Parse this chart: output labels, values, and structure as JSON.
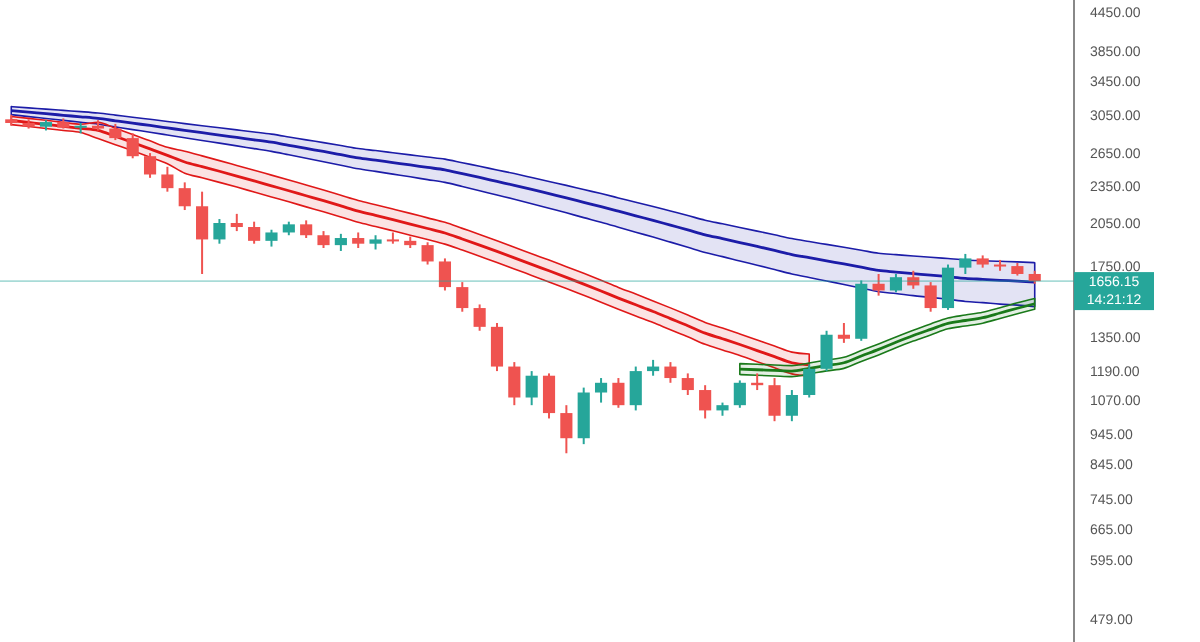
{
  "chart_data": {
    "type": "candlestick",
    "log": true,
    "grid": false,
    "categories": [
      null,
      null,
      null,
      null,
      null,
      null,
      null,
      null,
      null,
      null,
      null,
      null,
      null,
      null,
      null,
      null,
      null,
      null,
      null,
      null,
      null,
      null,
      null,
      null,
      null,
      null,
      null,
      null,
      null,
      null,
      null,
      null,
      null,
      null,
      null,
      null,
      null,
      null,
      null,
      null,
      null,
      null,
      null,
      null,
      null,
      null,
      null,
      null,
      null,
      null,
      null,
      null,
      null,
      null,
      null,
      null,
      null,
      null,
      null,
      null
    ],
    "ohlc": [
      [
        3000,
        3050,
        2930,
        2960
      ],
      [
        2960,
        3000,
        2900,
        2920
      ],
      [
        2920,
        2990,
        2880,
        2970
      ],
      [
        2970,
        3010,
        2900,
        2910
      ],
      [
        2910,
        2960,
        2850,
        2930
      ],
      [
        2930,
        2990,
        2880,
        2900
      ],
      [
        2900,
        2950,
        2780,
        2800
      ],
      [
        2800,
        2850,
        2600,
        2620
      ],
      [
        2620,
        2650,
        2420,
        2450
      ],
      [
        2450,
        2520,
        2300,
        2330
      ],
      [
        2330,
        2380,
        2150,
        2180
      ],
      [
        2180,
        2300,
        1700,
        1930
      ],
      [
        1930,
        2080,
        1900,
        2050
      ],
      [
        2050,
        2120,
        1990,
        2020
      ],
      [
        2020,
        2060,
        1900,
        1920
      ],
      [
        1920,
        2000,
        1880,
        1980
      ],
      [
        1980,
        2060,
        1960,
        2040
      ],
      [
        2040,
        2070,
        1940,
        1960
      ],
      [
        1960,
        1990,
        1870,
        1890
      ],
      [
        1890,
        1970,
        1850,
        1940
      ],
      [
        1940,
        1980,
        1870,
        1900
      ],
      [
        1900,
        1960,
        1860,
        1930
      ],
      [
        1930,
        1980,
        1900,
        1920
      ],
      [
        1920,
        1950,
        1870,
        1890
      ],
      [
        1890,
        1910,
        1760,
        1780
      ],
      [
        1780,
        1800,
        1600,
        1620
      ],
      [
        1620,
        1650,
        1480,
        1500
      ],
      [
        1500,
        1520,
        1380,
        1400
      ],
      [
        1400,
        1420,
        1190,
        1210
      ],
      [
        1210,
        1230,
        1050,
        1080
      ],
      [
        1080,
        1190,
        1050,
        1170
      ],
      [
        1170,
        1180,
        1000,
        1020
      ],
      [
        1020,
        1050,
        880,
        930
      ],
      [
        930,
        1120,
        910,
        1100
      ],
      [
        1100,
        1160,
        1060,
        1140
      ],
      [
        1140,
        1160,
        1040,
        1050
      ],
      [
        1050,
        1210,
        1030,
        1190
      ],
      [
        1190,
        1240,
        1170,
        1210
      ],
      [
        1210,
        1230,
        1140,
        1160
      ],
      [
        1160,
        1180,
        1090,
        1110
      ],
      [
        1110,
        1130,
        1000,
        1030
      ],
      [
        1030,
        1060,
        1010,
        1050
      ],
      [
        1050,
        1150,
        1040,
        1140
      ],
      [
        1140,
        1180,
        1110,
        1130
      ],
      [
        1130,
        1160,
        990,
        1010
      ],
      [
        1010,
        1110,
        990,
        1090
      ],
      [
        1090,
        1220,
        1080,
        1200
      ],
      [
        1200,
        1380,
        1190,
        1360
      ],
      [
        1360,
        1420,
        1320,
        1340
      ],
      [
        1340,
        1660,
        1330,
        1640
      ],
      [
        1640,
        1700,
        1570,
        1600
      ],
      [
        1600,
        1700,
        1590,
        1680
      ],
      [
        1680,
        1720,
        1610,
        1630
      ],
      [
        1630,
        1650,
        1480,
        1500
      ],
      [
        1500,
        1760,
        1490,
        1740
      ],
      [
        1740,
        1830,
        1700,
        1800
      ],
      [
        1800,
        1820,
        1740,
        1760
      ],
      [
        1760,
        1790,
        1720,
        1750
      ],
      [
        1750,
        1770,
        1690,
        1700
      ],
      [
        1700,
        1720,
        1640,
        1656
      ]
    ],
    "series": [
      {
        "type": "line",
        "color": "#1c1ca8",
        "values": [
          3098,
          3080,
          3063,
          3045,
          3028,
          3010,
          2984,
          2958,
          2933,
          2907,
          2881,
          2856,
          2832,
          2807,
          2783,
          2758,
          2727,
          2696,
          2666,
          2635,
          2604,
          2582,
          2559,
          2537,
          2514,
          2492,
          2457,
          2423,
          2388,
          2354,
          2319,
          2283,
          2248,
          2212,
          2177,
          2141,
          2105,
          2070,
          2034,
          1999,
          1963,
          1936,
          1908,
          1881,
          1854,
          1826,
          1805,
          1784,
          1764,
          1743,
          1722,
          1712,
          1702,
          1693,
          1683,
          1673,
          1667,
          1661,
          1656,
          1650
        ],
        "upper": [
          3144,
          3129,
          3115,
          3100,
          3086,
          3070,
          3047,
          3023,
          3000,
          2977,
          2953,
          2930,
          2908,
          2886,
          2864,
          2841,
          2812,
          2782,
          2754,
          2725,
          2695,
          2675,
          2654,
          2633,
          2612,
          2592,
          2558,
          2525,
          2491,
          2458,
          2423,
          2388,
          2354,
          2318,
          2284,
          2248,
          2212,
          2178,
          2142,
          2107,
          2071,
          2044,
          2017,
          1990,
          1963,
          1936,
          1915,
          1895,
          1875,
          1855,
          1834,
          1825,
          1816,
          1808,
          1799,
          1790,
          1785,
          1781,
          1777,
          1772
        ],
        "lower": [
          3052,
          3030,
          3010,
          2988,
          2968,
          2947,
          2918,
          2889,
          2861,
          2832,
          2803,
          2775,
          2749,
          2721,
          2694,
          2667,
          2634,
          2601,
          2568,
          2535,
          2502,
          2478,
          2453,
          2429,
          2404,
          2380,
          2344,
          2308,
          2272,
          2237,
          2201,
          2164,
          2128,
          2091,
          2056,
          2019,
          1982,
          1947,
          1911,
          1875,
          1839,
          1812,
          1783,
          1756,
          1728,
          1700,
          1678,
          1657,
          1636,
          1614,
          1593,
          1582,
          1570,
          1560,
          1549,
          1537,
          1530,
          1522,
          1516,
          1508
        ]
      },
      {
        "type": "line",
        "color": "#e01818",
        "values": [
          2987,
          2966,
          2945,
          2923,
          2902,
          2881,
          2818,
          2755,
          2691,
          2628,
          2565,
          2522,
          2479,
          2436,
          2393,
          2350,
          2308,
          2266,
          2225,
          2183,
          2141,
          2108,
          2075,
          2042,
          2009,
          1976,
          1933,
          1890,
          1847,
          1804,
          1761,
          1720,
          1679,
          1638,
          1597,
          1556,
          1518,
          1481,
          1443,
          1406,
          1368,
          1340,
          1312,
          1283,
          1255,
          1227,
          1218,
          null,
          null,
          null,
          null,
          null,
          null,
          null,
          null,
          null,
          null,
          null,
          null,
          null
        ],
        "upper": [
          3032,
          3011,
          2989,
          2967,
          2946,
          2967,
          2903,
          2838,
          2772,
          2707,
          2668,
          2623,
          2578,
          2533,
          2489,
          2444,
          2400,
          2357,
          2314,
          2270,
          2227,
          2192,
          2158,
          2124,
          2089,
          2055,
          2010,
          1966,
          1921,
          1876,
          1831,
          1789,
          1746,
          1704,
          1661,
          1618,
          1579,
          1540,
          1501,
          1462,
          1423,
          1394,
          1364,
          1334,
          1305,
          1276,
          1267,
          null,
          null,
          null,
          null,
          null,
          null,
          null,
          null,
          null,
          null,
          null,
          null,
          null
        ],
        "lower": [
          2942,
          2922,
          2901,
          2879,
          2858,
          2795,
          2733,
          2672,
          2610,
          2549,
          2462,
          2421,
          2380,
          2339,
          2297,
          2256,
          2216,
          2175,
          2136,
          2096,
          2055,
          2024,
          1992,
          1960,
          1929,
          1897,
          1856,
          1814,
          1773,
          1732,
          1691,
          1651,
          1612,
          1572,
          1533,
          1494,
          1457,
          1422,
          1385,
          1350,
          1313,
          1286,
          1260,
          1232,
          1205,
          1178,
          1169,
          null,
          null,
          null,
          null,
          null,
          null,
          null,
          null,
          null,
          null,
          null,
          null,
          null
        ]
      },
      {
        "type": "line",
        "color": "#1a7a1a",
        "values": [
          null,
          null,
          null,
          null,
          null,
          null,
          null,
          null,
          null,
          null,
          null,
          null,
          null,
          null,
          null,
          null,
          null,
          null,
          null,
          null,
          null,
          null,
          null,
          null,
          null,
          null,
          null,
          null,
          null,
          null,
          null,
          null,
          null,
          null,
          null,
          null,
          null,
          null,
          null,
          null,
          null,
          null,
          1199,
          1196,
          1193,
          1190,
          1202,
          1215,
          1227,
          1258,
          1289,
          1323,
          1356,
          1387,
          1418,
          1433,
          1448,
          1473,
          1499,
          1524
        ],
        "upper": [
          null,
          null,
          null,
          null,
          null,
          null,
          null,
          null,
          null,
          null,
          null,
          null,
          null,
          null,
          null,
          null,
          null,
          null,
          null,
          null,
          null,
          null,
          null,
          null,
          null,
          null,
          null,
          null,
          null,
          null,
          null,
          null,
          null,
          null,
          null,
          null,
          null,
          null,
          null,
          null,
          null,
          null,
          1223,
          1220,
          1217,
          1214,
          1226,
          1239,
          1252,
          1283,
          1315,
          1349,
          1383,
          1415,
          1446,
          1462,
          1477,
          1502,
          1529,
          1554
        ],
        "lower": [
          null,
          null,
          null,
          null,
          null,
          null,
          null,
          null,
          null,
          null,
          null,
          null,
          null,
          null,
          null,
          null,
          null,
          null,
          null,
          null,
          null,
          null,
          null,
          null,
          null,
          null,
          null,
          null,
          null,
          null,
          null,
          null,
          null,
          null,
          null,
          null,
          null,
          null,
          null,
          null,
          null,
          null,
          1175,
          1172,
          1169,
          1166,
          1178,
          1191,
          1202,
          1233,
          1263,
          1297,
          1329,
          1359,
          1390,
          1404,
          1419,
          1444,
          1469,
          1494
        ]
      }
    ],
    "ylim": [
      440,
      4650
    ],
    "yticks": [
      {
        "value": 4450,
        "label": "4450.00"
      },
      {
        "value": 3850,
        "label": "3850.00"
      },
      {
        "value": 3450,
        "label": "3450.00"
      },
      {
        "value": 3050,
        "label": "3050.00"
      },
      {
        "value": 2650,
        "label": "2650.00"
      },
      {
        "value": 2350,
        "label": "2350.00"
      },
      {
        "value": 2050,
        "label": "2050.00"
      },
      {
        "value": 1750,
        "label": "1750.00"
      },
      {
        "value": 1350,
        "label": "1350.00"
      },
      {
        "value": 1190,
        "label": "1190.00"
      },
      {
        "value": 1070,
        "label": "1070.00"
      },
      {
        "value": 945,
        "label": "945.00"
      },
      {
        "value": 845,
        "label": "845.00"
      },
      {
        "value": 745,
        "label": "745.00"
      },
      {
        "value": 665,
        "label": "665.00"
      },
      {
        "value": 595,
        "label": "595.00"
      },
      {
        "value": 479,
        "label": "479.00"
      }
    ],
    "ref_lines": [
      {
        "axis": "y",
        "value": 1656.15,
        "label": "1656.15",
        "color": "#26a69a"
      }
    ],
    "annotations": [
      "14:21:12"
    ]
  }
}
